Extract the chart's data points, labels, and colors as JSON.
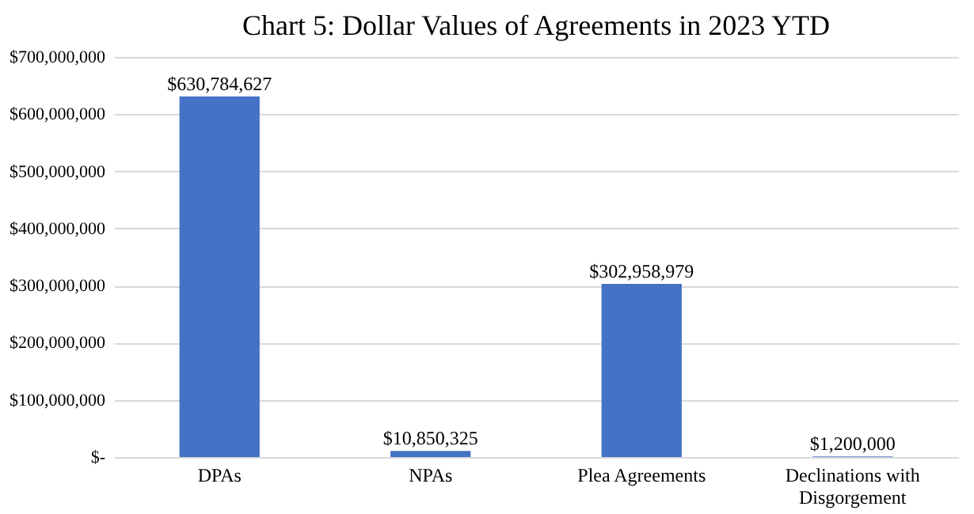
{
  "chart_data": {
    "type": "bar",
    "title": "Chart 5: Dollar Values of Agreements in 2023 YTD",
    "categories": [
      "DPAs",
      "NPAs",
      "Plea Agreements",
      "Declinations with Disgorgement"
    ],
    "values": [
      630784627,
      10850325,
      302958979,
      1200000
    ],
    "value_labels": [
      "$630,784,627",
      "$10,850,325",
      "$302,958,979",
      "$1,200,000"
    ],
    "color": "#4472c4",
    "ylim": [
      0,
      700000000
    ],
    "yticks": [
      {
        "value": 0,
        "label": "$-"
      },
      {
        "value": 100000000,
        "label": "$100,000,000"
      },
      {
        "value": 200000000,
        "label": "$200,000,000"
      },
      {
        "value": 300000000,
        "label": "$300,000,000"
      },
      {
        "value": 400000000,
        "label": "$400,000,000"
      },
      {
        "value": 500000000,
        "label": "$500,000,000"
      },
      {
        "value": 600000000,
        "label": "$600,000,000"
      },
      {
        "value": 700000000,
        "label": "$700,000,000"
      }
    ],
    "grid": "y"
  }
}
